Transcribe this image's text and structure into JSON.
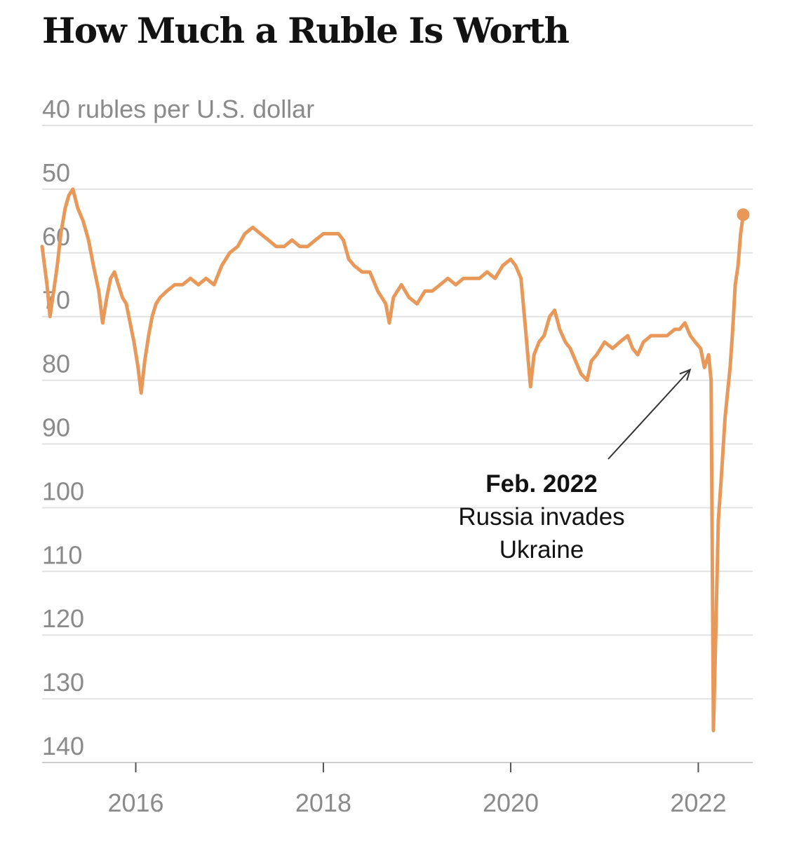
{
  "chart_data": {
    "type": "line",
    "title": "How Much a Ruble Is Worth",
    "ylabel": "rubles per U.S. dollar",
    "y_inverted": true,
    "ylim": [
      40,
      140
    ],
    "yticks": [
      40,
      50,
      60,
      70,
      80,
      90,
      100,
      110,
      120,
      130,
      140
    ],
    "ytick_labels": [
      "40 rubles per U.S. dollar",
      "50",
      "60",
      "70",
      "80",
      "90",
      "100",
      "110",
      "120",
      "130",
      "140"
    ],
    "xlim": [
      "2015-01-01",
      "2022-08-01"
    ],
    "xticks": [
      "2016-01-01",
      "2018-01-01",
      "2020-01-01",
      "2022-01-01"
    ],
    "xtick_labels": [
      "2016",
      "2018",
      "2020",
      "2022"
    ],
    "grid": true,
    "line_color": "#e8995a",
    "series": [
      {
        "x": [
          "2015-01-01",
          "2015-01-20",
          "2015-02-01",
          "2015-02-15",
          "2015-03-01",
          "2015-03-15",
          "2015-04-01",
          "2015-04-15",
          "2015-05-01",
          "2015-05-20",
          "2015-06-10",
          "2015-07-01",
          "2015-07-20",
          "2015-08-10",
          "2015-08-25",
          "2015-09-10",
          "2015-09-25",
          "2015-10-10",
          "2015-10-25",
          "2015-11-10",
          "2015-11-25",
          "2015-12-10",
          "2015-12-25",
          "2016-01-10",
          "2016-01-22",
          "2016-02-05",
          "2016-02-20",
          "2016-03-05",
          "2016-03-20",
          "2016-04-05",
          "2016-05-01",
          "2016-06-01",
          "2016-07-01",
          "2016-08-01",
          "2016-09-01",
          "2016-10-01",
          "2016-11-01",
          "2016-12-01",
          "2017-01-01",
          "2017-02-01",
          "2017-03-01",
          "2017-04-01",
          "2017-05-01",
          "2017-06-01",
          "2017-07-01",
          "2017-08-01",
          "2017-09-01",
          "2017-10-01",
          "2017-11-01",
          "2017-12-01",
          "2018-01-01",
          "2018-02-01",
          "2018-03-01",
          "2018-03-20",
          "2018-04-10",
          "2018-05-01",
          "2018-06-01",
          "2018-07-01",
          "2018-08-01",
          "2018-09-01",
          "2018-09-15",
          "2018-10-01",
          "2018-11-01",
          "2018-12-01",
          "2019-01-01",
          "2019-02-01",
          "2019-03-01",
          "2019-04-01",
          "2019-05-01",
          "2019-06-01",
          "2019-07-01",
          "2019-08-01",
          "2019-09-01",
          "2019-10-01",
          "2019-11-01",
          "2019-12-01",
          "2020-01-01",
          "2020-01-20",
          "2020-02-10",
          "2020-03-01",
          "2020-03-18",
          "2020-04-01",
          "2020-04-20",
          "2020-05-10",
          "2020-06-01",
          "2020-06-20",
          "2020-07-10",
          "2020-08-01",
          "2020-08-20",
          "2020-09-10",
          "2020-10-01",
          "2020-10-25",
          "2020-11-10",
          "2020-12-01",
          "2021-01-01",
          "2021-02-01",
          "2021-03-01",
          "2021-04-01",
          "2021-04-20",
          "2021-05-10",
          "2021-06-01",
          "2021-07-01",
          "2021-08-01",
          "2021-09-01",
          "2021-10-01",
          "2021-10-20",
          "2021-11-10",
          "2021-12-01",
          "2021-12-20",
          "2022-01-10",
          "2022-01-25",
          "2022-02-10",
          "2022-02-20",
          "2022-03-01",
          "2022-03-10",
          "2022-03-20",
          "2022-04-01",
          "2022-04-15",
          "2022-04-25",
          "2022-05-05",
          "2022-05-15",
          "2022-05-25",
          "2022-06-05",
          "2022-06-15",
          "2022-06-25"
        ],
        "y": [
          59,
          65,
          70,
          66,
          62,
          57,
          53,
          51,
          50,
          53,
          55,
          58,
          62,
          66,
          71,
          67,
          64,
          63,
          65,
          67,
          68,
          71,
          74,
          78,
          82,
          77,
          73,
          70,
          68,
          67,
          66,
          65,
          65,
          64,
          65,
          64,
          65,
          62,
          60,
          59,
          57,
          56,
          57,
          58,
          59,
          59,
          58,
          59,
          59,
          58,
          57,
          57,
          57,
          58,
          61,
          62,
          63,
          63,
          66,
          68,
          71,
          67,
          65,
          67,
          68,
          66,
          66,
          65,
          64,
          65,
          64,
          64,
          64,
          63,
          64,
          62,
          61,
          62,
          64,
          73,
          81,
          76,
          74,
          73,
          70,
          69,
          72,
          74,
          75,
          77,
          79,
          80,
          77,
          76,
          74,
          75,
          74,
          73,
          75,
          76,
          74,
          73,
          73,
          73,
          72,
          72,
          71,
          73,
          74,
          75,
          78,
          76,
          80,
          135,
          120,
          102,
          95,
          86,
          82,
          78,
          72,
          65,
          62,
          57,
          54
        ]
      }
    ],
    "annotations": [
      {
        "title": "Feb. 2022",
        "lines": [
          "Russia invades",
          "Ukraine"
        ],
        "x": "2022-02-20",
        "y": 79
      }
    ],
    "end_marker": {
      "x": "2022-06-25",
      "y": 54
    }
  }
}
